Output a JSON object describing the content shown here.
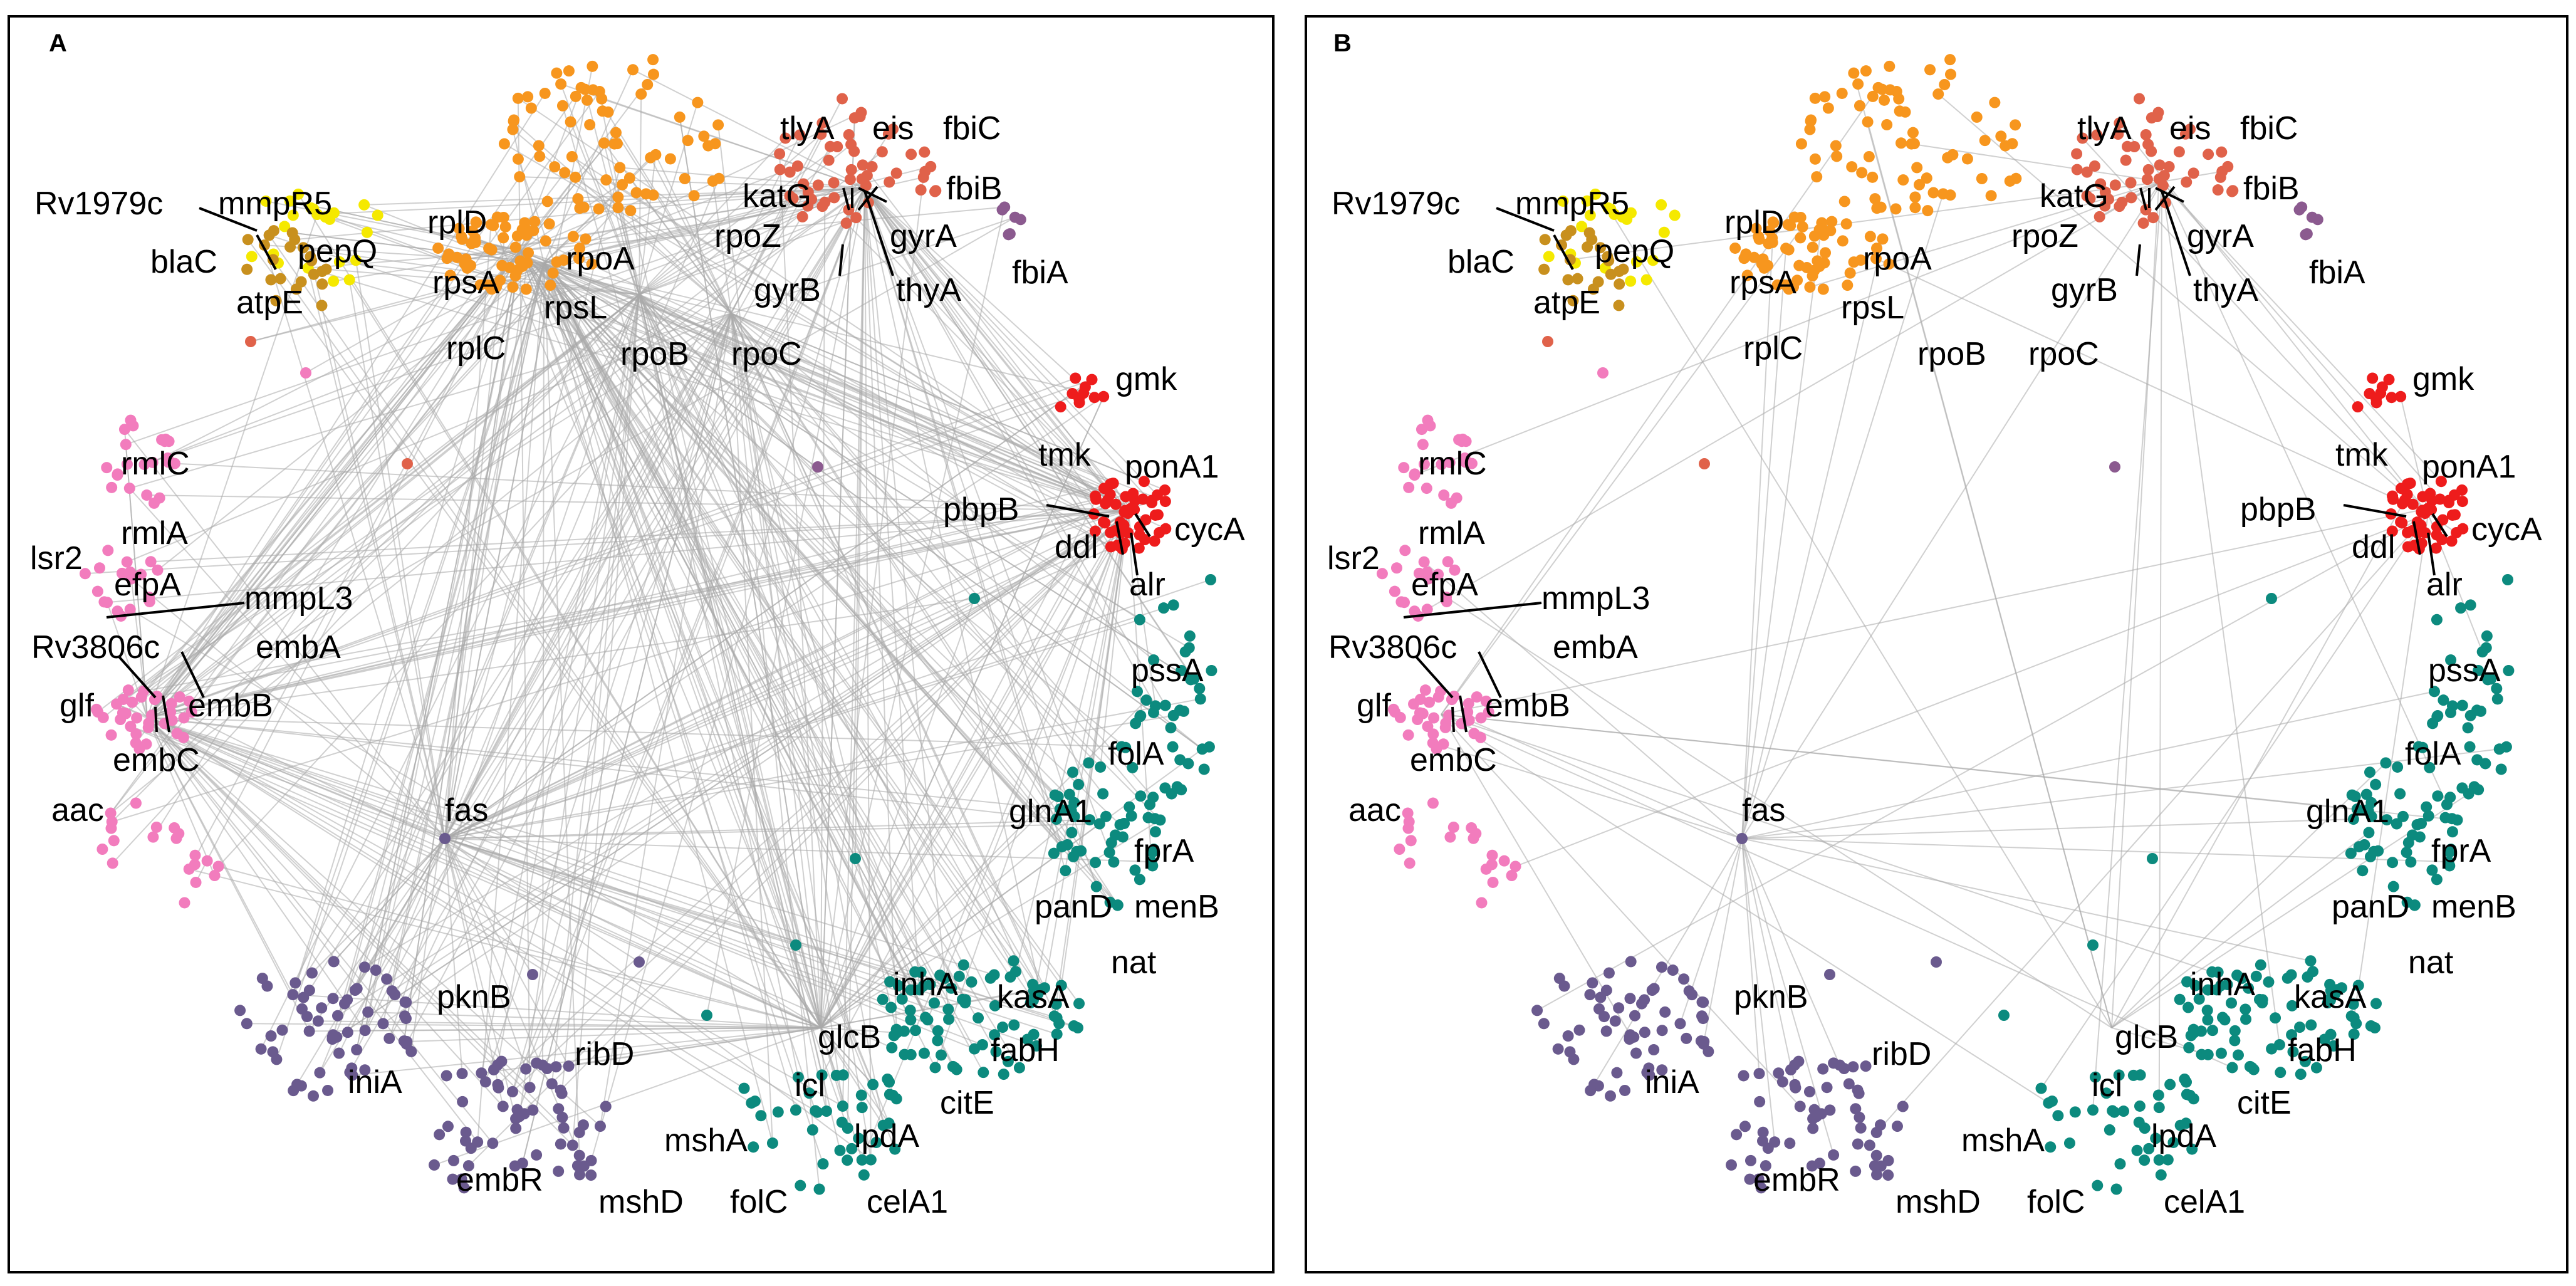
{
  "figure": {
    "type": "network-diagram",
    "panels": [
      {
        "id": "A",
        "letter": "A",
        "layout": "dense",
        "labels": [
          "Rv1979c",
          "mmpR5",
          "blaC",
          "pepQ",
          "atpE",
          "rplD",
          "rpoA",
          "rpsA",
          "rpsL",
          "rplC",
          "rpoB",
          "rpoC",
          "rpoZ",
          "katG",
          "tlyA",
          "eis",
          "fbiC",
          "fbiB",
          "fbiA",
          "gyrA",
          "gyrB",
          "thyA",
          "gmk",
          "tmk",
          "ponA1",
          "pbpB",
          "ddl",
          "cycA",
          "alr",
          "rmlC",
          "rmlA",
          "lsr2",
          "efpA",
          "mmpL3",
          "Rv3806c",
          "embA",
          "glf",
          "embB",
          "embC",
          "aac",
          "fas",
          "pssA",
          "folA",
          "glnA1",
          "fprA",
          "panD",
          "menB",
          "nat",
          "pknB",
          "inhA",
          "kasA",
          "glcB",
          "fabH",
          "ribD",
          "iniA",
          "icl",
          "citE",
          "lpdA",
          "mshA",
          "embR",
          "mshD",
          "folC",
          "celA1"
        ]
      },
      {
        "id": "B",
        "letter": "B",
        "layout": "sparse",
        "labels": [
          "Rv1979c",
          "mmpR5",
          "blaC",
          "pepQ",
          "atpE",
          "rplD",
          "rpoA",
          "rpsA",
          "rpsL",
          "rplC",
          "rpoB",
          "rpoC",
          "rpoZ",
          "katG",
          "tlyA",
          "eis",
          "fbiC",
          "fbiB",
          "fbiA",
          "gyrA",
          "gyrB",
          "thyA",
          "gmk",
          "tmk",
          "ponA1",
          "pbpB",
          "ddl",
          "cycA",
          "alr",
          "rmlC",
          "rmlA",
          "lsr2",
          "efpA",
          "mmpL3",
          "Rv3806c",
          "embA",
          "glf",
          "embB",
          "embC",
          "aac",
          "fas",
          "pssA",
          "folA",
          "glnA1",
          "fprA",
          "panD",
          "menB",
          "nat",
          "pknB",
          "inhA",
          "kasA",
          "glcB",
          "fabH",
          "ribD",
          "iniA",
          "icl",
          "citE",
          "lpdA",
          "mshA",
          "embR",
          "mshD",
          "folC",
          "celA1"
        ]
      }
    ],
    "colors": {
      "edge": "#a9a9a9",
      "yellow_group": "#f5e900",
      "orange_group": "#f7961e",
      "gold_group": "#c8901e",
      "salmon_group": "#e0624a",
      "mauve_group": "#8b5a8f",
      "red_group": "#ee1c1c",
      "pink_group": "#f27cbd",
      "teal_group": "#0c8a7e",
      "purple_group": "#6a5a8e"
    }
  }
}
